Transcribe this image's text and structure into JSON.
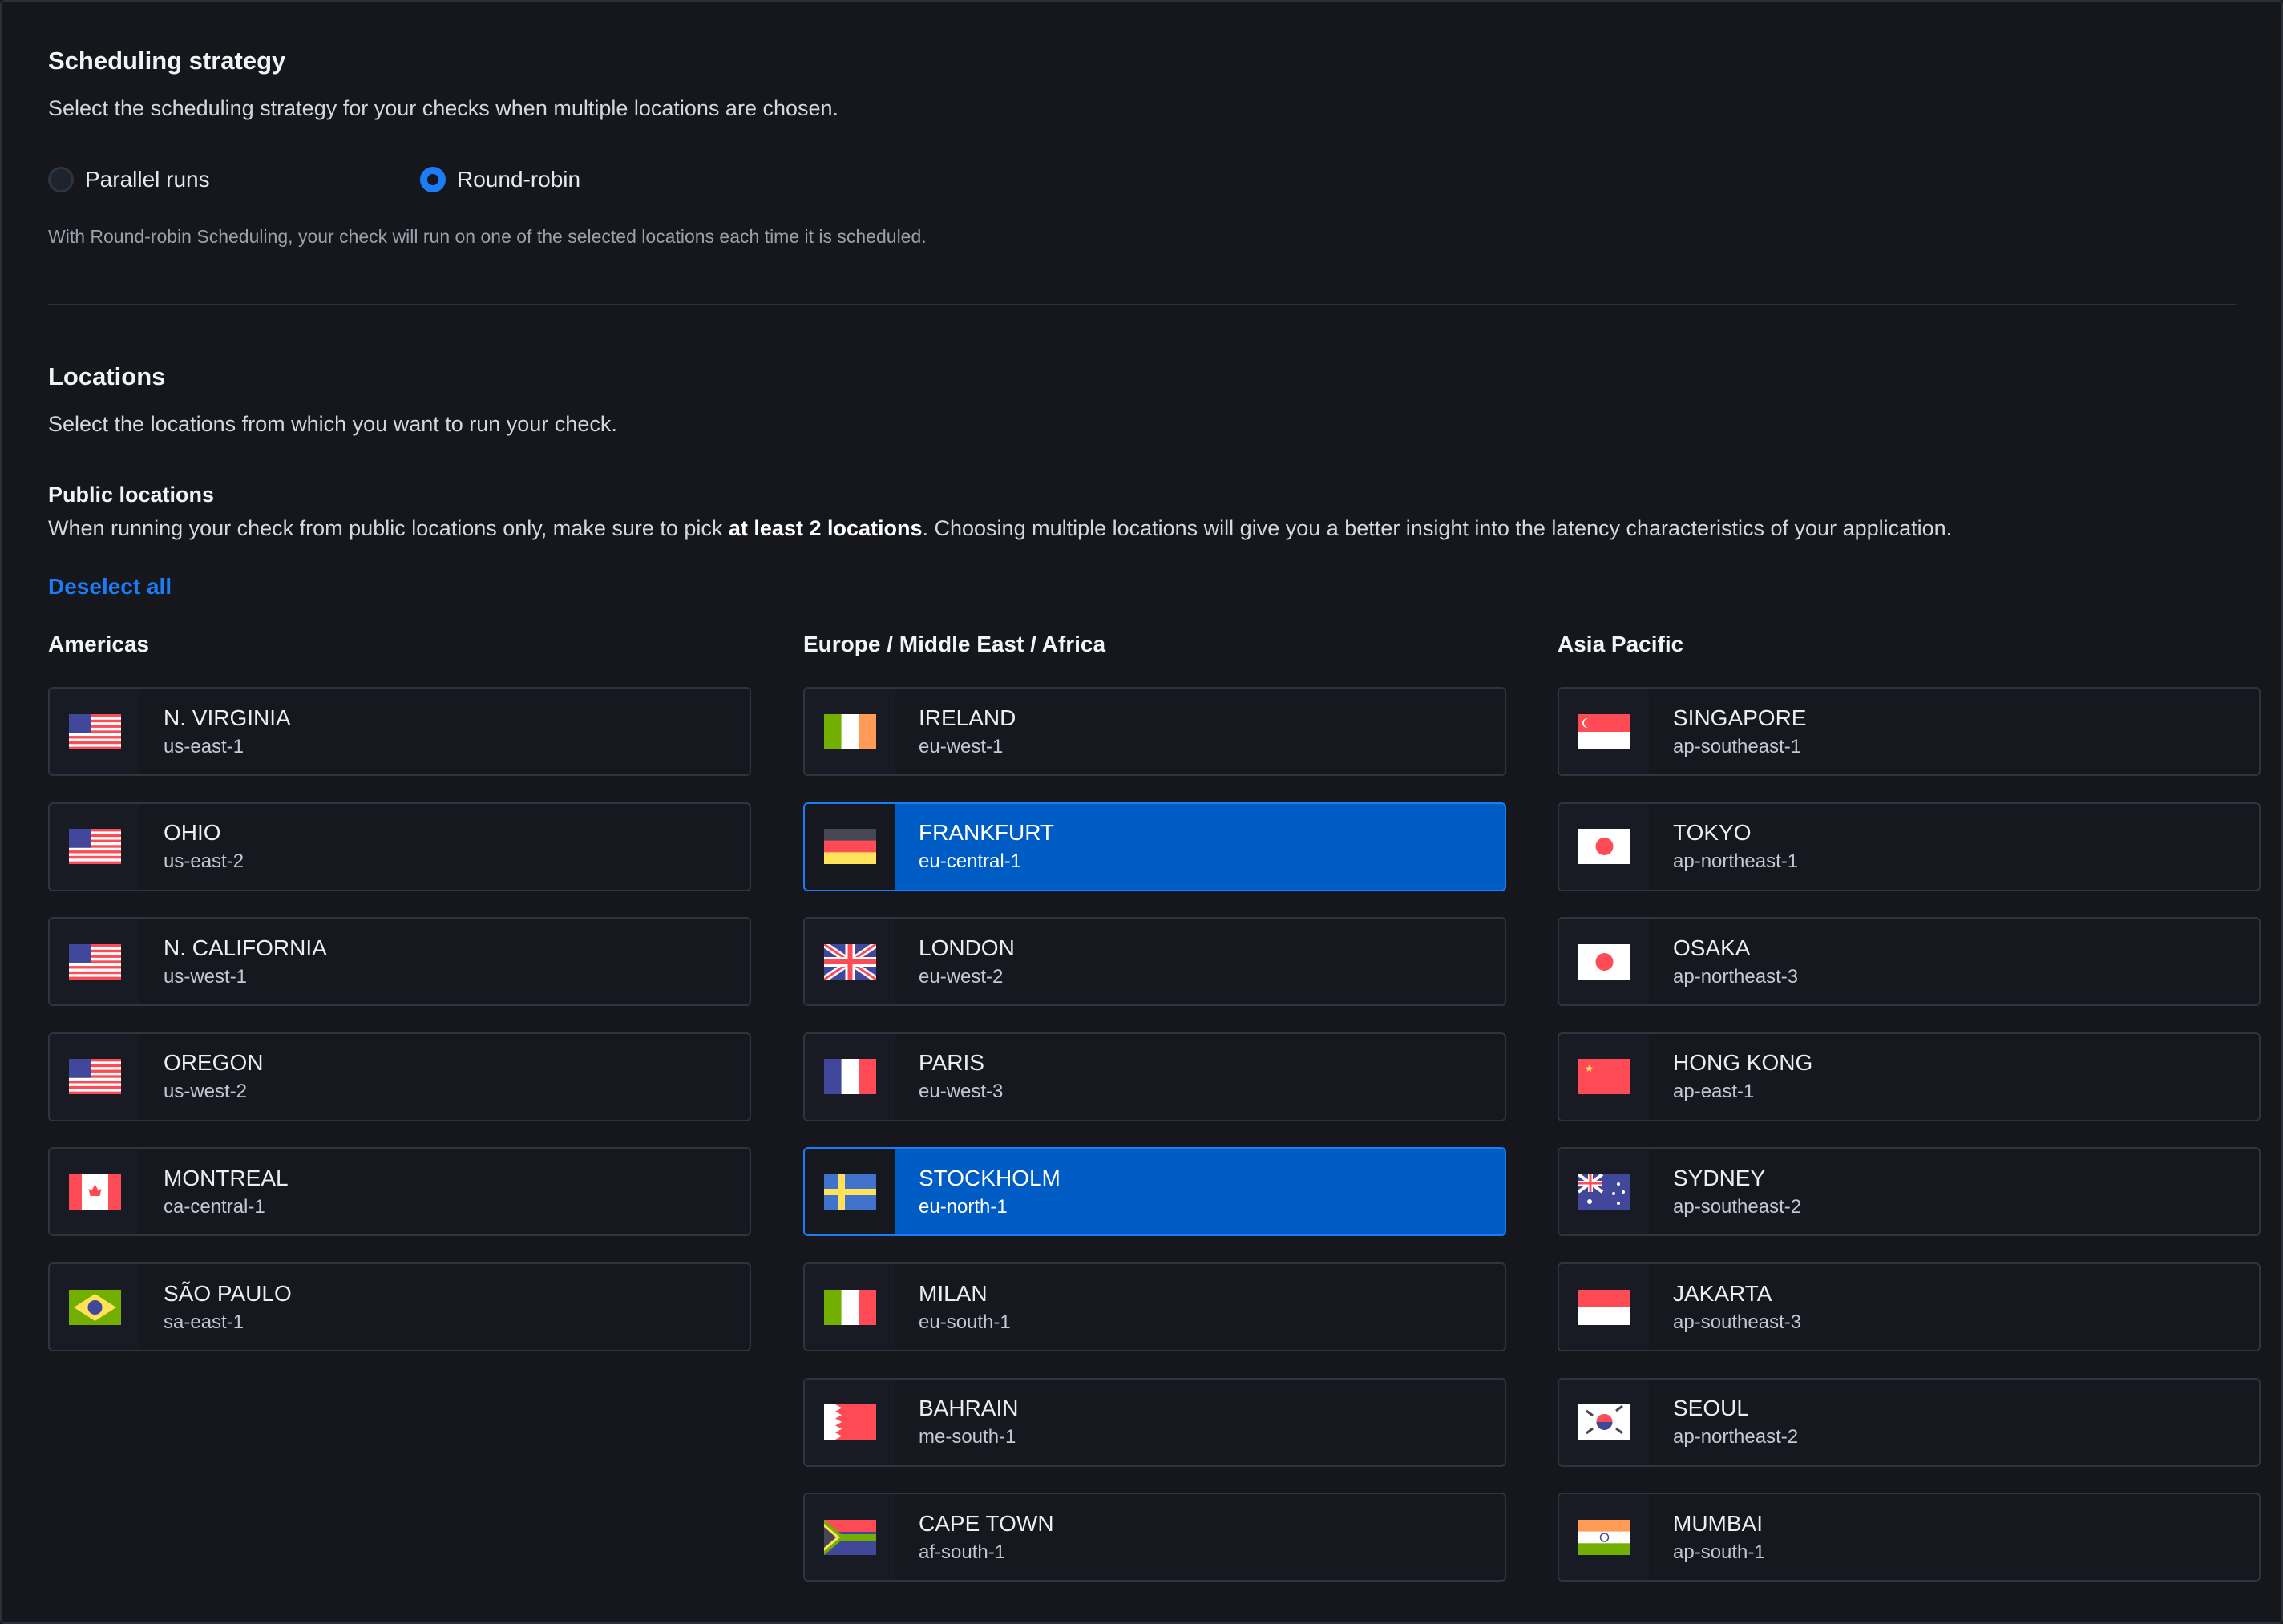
{
  "scheduling": {
    "title": "Scheduling strategy",
    "description": "Select the scheduling strategy for your checks when multiple locations are chosen.",
    "options": [
      {
        "label": "Parallel runs",
        "selected": false
      },
      {
        "label": "Round-robin",
        "selected": true
      }
    ],
    "hint": "With Round-robin Scheduling, your check will run on one of the selected locations each time it is scheduled."
  },
  "locations": {
    "title": "Locations",
    "description": "Select the locations from which you want to run your check.",
    "public_title": "Public locations",
    "public_text_before": "When running your check from public locations only, make sure to pick ",
    "public_text_bold": "at least 2 locations",
    "public_text_after": ". Choosing multiple locations will give you a better insight into the latency characteristics of your application.",
    "deselect_all": "Deselect all",
    "accent": "#005cc5",
    "columns": [
      {
        "title": "Americas",
        "items": [
          {
            "name": "N. VIRGINIA",
            "code": "us-east-1",
            "flag": "us",
            "selected": false
          },
          {
            "name": "OHIO",
            "code": "us-east-2",
            "flag": "us",
            "selected": false
          },
          {
            "name": "N. CALIFORNIA",
            "code": "us-west-1",
            "flag": "us",
            "selected": false
          },
          {
            "name": "OREGON",
            "code": "us-west-2",
            "flag": "us",
            "selected": false
          },
          {
            "name": "MONTREAL",
            "code": "ca-central-1",
            "flag": "ca",
            "selected": false
          },
          {
            "name": "SÃO PAULO",
            "code": "sa-east-1",
            "flag": "br",
            "selected": false
          }
        ]
      },
      {
        "title": "Europe / Middle East / Africa",
        "items": [
          {
            "name": "IRELAND",
            "code": "eu-west-1",
            "flag": "ie",
            "selected": false
          },
          {
            "name": "FRANKFURT",
            "code": "eu-central-1",
            "flag": "de",
            "selected": true
          },
          {
            "name": "LONDON",
            "code": "eu-west-2",
            "flag": "gb",
            "selected": false
          },
          {
            "name": "PARIS",
            "code": "eu-west-3",
            "flag": "fr",
            "selected": false
          },
          {
            "name": "STOCKHOLM",
            "code": "eu-north-1",
            "flag": "se",
            "selected": true
          },
          {
            "name": "MILAN",
            "code": "eu-south-1",
            "flag": "it",
            "selected": false
          },
          {
            "name": "BAHRAIN",
            "code": "me-south-1",
            "flag": "bh",
            "selected": false
          },
          {
            "name": "CAPE TOWN",
            "code": "af-south-1",
            "flag": "za",
            "selected": false
          }
        ]
      },
      {
        "title": "Asia Pacific",
        "items": [
          {
            "name": "SINGAPORE",
            "code": "ap-southeast-1",
            "flag": "sg",
            "selected": false
          },
          {
            "name": "TOKYO",
            "code": "ap-northeast-1",
            "flag": "jp",
            "selected": false
          },
          {
            "name": "OSAKA",
            "code": "ap-northeast-3",
            "flag": "jp",
            "selected": false
          },
          {
            "name": "HONG KONG",
            "code": "ap-east-1",
            "flag": "hk",
            "selected": false
          },
          {
            "name": "SYDNEY",
            "code": "ap-southeast-2",
            "flag": "au",
            "selected": false
          },
          {
            "name": "JAKARTA",
            "code": "ap-southeast-3",
            "flag": "id",
            "selected": false
          },
          {
            "name": "SEOUL",
            "code": "ap-northeast-2",
            "flag": "kr",
            "selected": false
          },
          {
            "name": "MUMBAI",
            "code": "ap-south-1",
            "flag": "in",
            "selected": false
          }
        ]
      }
    ]
  }
}
